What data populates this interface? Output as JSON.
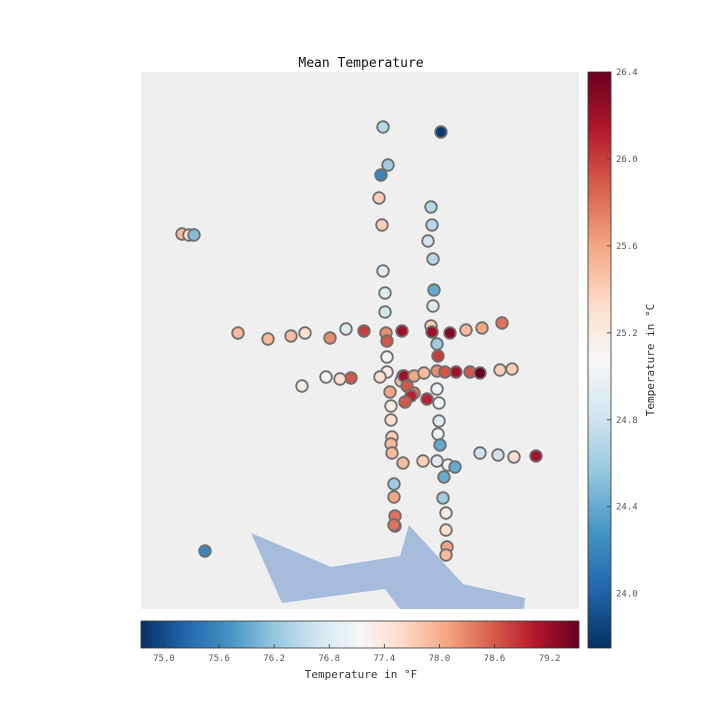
{
  "chart_data": {
    "type": "scatter",
    "title": "Mean Temperature",
    "colorbar_right": {
      "label": "Temperature in °C",
      "range": [
        23.75,
        26.4
      ],
      "ticks": [
        "24.0",
        "24.4",
        "24.8",
        "25.2",
        "25.6",
        "26.0",
        "26.4"
      ]
    },
    "colorbar_bottom": {
      "label": "Temperature in °F",
      "range": [
        74.75,
        79.52
      ],
      "ticks": [
        "75.0",
        "75.6",
        "76.2",
        "76.8",
        "77.4",
        "78.0",
        "78.6",
        "79.2"
      ]
    },
    "grid": false,
    "background": "#efefef",
    "water_color": "#a6bcdd",
    "colormap": [
      "#053061",
      "#2166ac",
      "#4393c3",
      "#92c5de",
      "#d1e5f0",
      "#f7f7f7",
      "#fddbc7",
      "#f4a582",
      "#d6604d",
      "#b2182b",
      "#67001f"
    ],
    "points_c": [
      24.7,
      23.8,
      24.6,
      24.2,
      25.4,
      25.4,
      24.7,
      24.7,
      24.8,
      24.7,
      25.5,
      25.3,
      24.5,
      24.9,
      24.9,
      24.4,
      24.8,
      24.9,
      25.5,
      25.5,
      25.5,
      25.3,
      25.7,
      24.9,
      26.0,
      25.7,
      25.9,
      26.2,
      25.4,
      26.2,
      26.3,
      25.5,
      25.6,
      25.8,
      24.6,
      25.1,
      26.0,
      25.2,
      25.6,
      25.5,
      25.3,
      25.9,
      25.3,
      25.1,
      25.2,
      26.2,
      25.6,
      25.5,
      26.2,
      25.9,
      26.4,
      25.7,
      25.9,
      25.4,
      25.4,
      25.6,
      25.2,
      25.9,
      25.8,
      26.1,
      25.9,
      25.0,
      26.1,
      25.0,
      25.3,
      24.9,
      25.4,
      25.0,
      25.5,
      25.5,
      24.4,
      25.0,
      25.5,
      25.4,
      24.4,
      24.4,
      24.9,
      24.8,
      24.8,
      25.3,
      26.2,
      24.6,
      25.2,
      24.6,
      25.3,
      25.6,
      25.8,
      26.1,
      25.6,
      25.5,
      25.8,
      24.2
    ]
  }
}
